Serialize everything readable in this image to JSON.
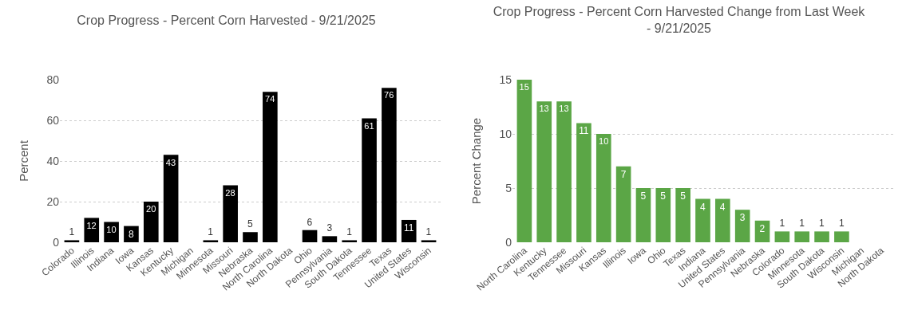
{
  "chart_data": [
    {
      "type": "bar",
      "title": "Crop Progress - Percent Corn Harvested - 9/21/2025",
      "ylabel": "Percent",
      "categories": [
        "Colorado",
        "Illinois",
        "Indiana",
        "Iowa",
        "Kansas",
        "Kentucky",
        "Michigan",
        "Minnesota",
        "Missouri",
        "Nebraska",
        "North Carolina",
        "North Dakota",
        "Ohio",
        "Pennsylvania",
        "South Dakota",
        "Tennessee",
        "Texas",
        "United States",
        "Wisconsin"
      ],
      "values": [
        1,
        12,
        10,
        8,
        20,
        43,
        0,
        1,
        28,
        5,
        74,
        0,
        6,
        3,
        1,
        61,
        76,
        11,
        1
      ],
      "value_labels": [
        "1",
        "12",
        "10",
        "8",
        "20",
        "43",
        null,
        "1",
        "28",
        "5",
        "74",
        null,
        "6",
        "3",
        "1",
        "61",
        "76",
        "11",
        "1"
      ],
      "color": "#000000",
      "ylim": [
        0,
        80
      ],
      "yticks": [
        0,
        20,
        40,
        60,
        80
      ],
      "grid": "y"
    },
    {
      "type": "bar",
      "title": "Crop Progress - Percent Corn Harvested Change from Last Week - 9/21/2025",
      "ylabel": "Percent Change",
      "categories": [
        "North Carolina",
        "Kentucky",
        "Tennessee",
        "Missouri",
        "Kansas",
        "Illinois",
        "Iowa",
        "Ohio",
        "Texas",
        "Indiana",
        "United States",
        "Pennsylvania",
        "Nebraska",
        "Colorado",
        "Minnesota",
        "South Dakota",
        "Wisconsin",
        "Michigan",
        "North Dakota"
      ],
      "values": [
        15,
        13,
        13,
        11,
        10,
        7,
        5,
        5,
        5,
        4,
        4,
        3,
        2,
        1,
        1,
        1,
        1,
        0,
        0
      ],
      "value_labels": [
        "15",
        "13",
        "13",
        "11",
        "10",
        "7",
        "5",
        "5",
        "5",
        "4",
        "4",
        "3",
        "2",
        "1",
        "1",
        "1",
        "1",
        null,
        null
      ],
      "color": "#5ba646",
      "ylim": [
        0,
        15
      ],
      "yticks": [
        0,
        5,
        10,
        15
      ],
      "grid": "y"
    }
  ]
}
